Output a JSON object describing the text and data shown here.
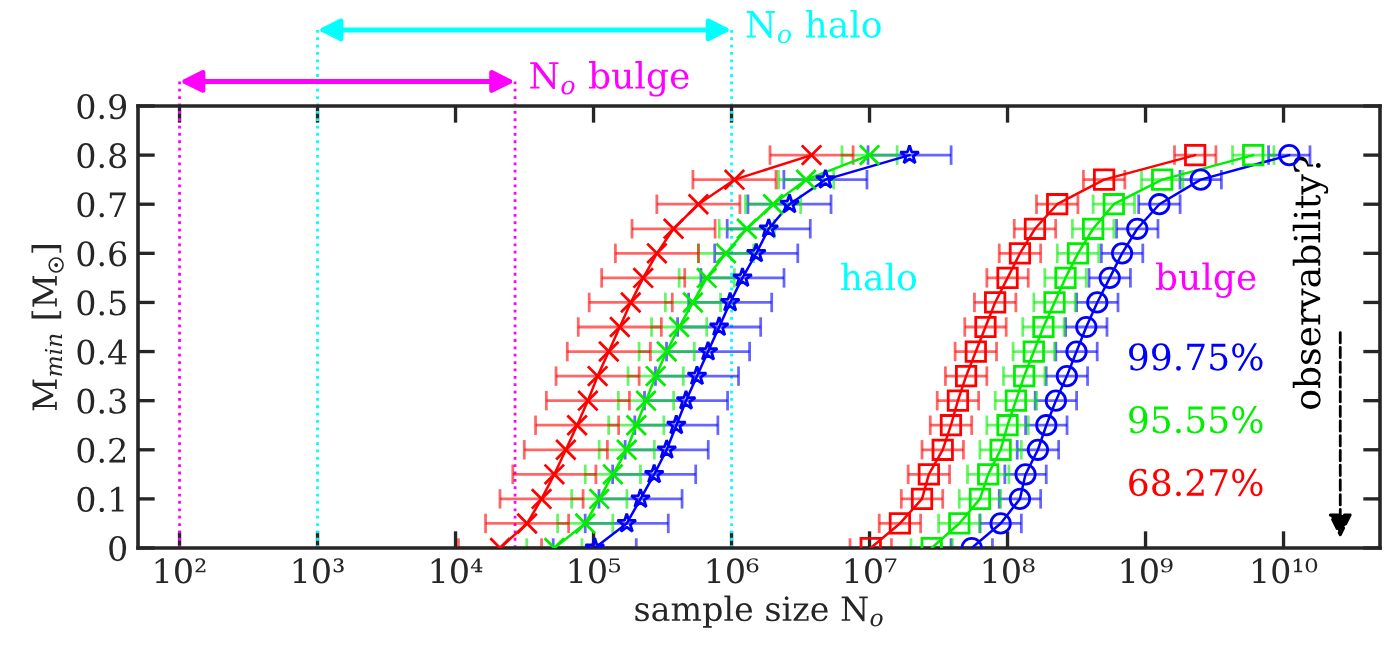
{
  "chart_data": {
    "type": "line",
    "xlabel": "sample size N$_{o}$",
    "ylabel": "M$_{min}$ [M$_{☉}$]",
    "log": "x",
    "xlim": [
      50,
      50000000000
    ],
    "ylim": [
      0,
      0.9
    ],
    "xticks": [
      {
        "value": 100,
        "label": "10²"
      },
      {
        "value": 1000,
        "label": "10³"
      },
      {
        "value": 10000,
        "label": "10⁴"
      },
      {
        "value": 100000,
        "label": "10⁵"
      },
      {
        "value": 1000000,
        "label": "10⁶"
      },
      {
        "value": 10000000,
        "label": "10⁷"
      },
      {
        "value": 100000000,
        "label": "10⁸"
      },
      {
        "value": 1000000000,
        "label": "10⁹"
      },
      {
        "value": 10000000000,
        "label": "10¹⁰"
      }
    ],
    "yticks": [
      0,
      0.1,
      0.2,
      0.3,
      0.4,
      0.5,
      0.6,
      0.7,
      0.8,
      0.9
    ],
    "series": [
      {
        "color": "#0000ff",
        "marker": "star",
        "x": [
          102000,
          174000,
          219000,
          275000,
          339000,
          398000,
          468000,
          562000,
          676000,
          813000,
          977000,
          1200000,
          1510000,
          1860000,
          2630000,
          4790000,
          19500000
        ],
        "values": [
          0,
          0.05,
          0.1,
          0.15,
          0.2,
          0.25,
          0.3,
          0.35,
          0.4,
          0.45,
          0.5,
          0.55,
          0.6,
          0.65,
          0.7,
          0.75,
          0.8
        ],
        "xerrors": [
          [
            51000,
            204000
          ],
          [
            87000,
            348000
          ],
          [
            109500,
            438000
          ],
          [
            137500,
            550000
          ],
          [
            169500,
            678000
          ],
          [
            199000,
            796000
          ],
          [
            234000,
            936000
          ],
          [
            281000,
            1124000
          ],
          [
            338000,
            1352000
          ],
          [
            406500,
            1626000
          ],
          [
            488500,
            1954000
          ],
          [
            600000,
            2400000
          ],
          [
            755000,
            3020000
          ],
          [
            930000,
            3720000
          ],
          [
            1315000,
            5260000
          ],
          [
            2395000,
            9580000
          ],
          [
            9750000,
            39000000
          ]
        ]
      },
      {
        "color": "#00ee00",
        "marker": "cross",
        "x": [
          52000,
          87000,
          110000,
          138000,
          174000,
          204000,
          240000,
          282000,
          339000,
          417000,
          525000,
          661000,
          912000,
          1290000,
          2000000,
          3470000,
          10000000
        ],
        "values": [
          0,
          0.05,
          0.1,
          0.15,
          0.2,
          0.25,
          0.3,
          0.35,
          0.4,
          0.45,
          0.5,
          0.55,
          0.6,
          0.65,
          0.7,
          0.75,
          0.8
        ],
        "xerrors": [
          [
            32800,
            82400
          ],
          [
            54900,
            137900
          ],
          [
            69400,
            174400
          ],
          [
            87100,
            218700
          ],
          [
            109800,
            275800
          ],
          [
            128700,
            323300
          ],
          [
            151400,
            380400
          ],
          [
            177900,
            447000
          ],
          [
            213900,
            537300
          ],
          [
            263100,
            660900
          ],
          [
            331300,
            832100
          ],
          [
            417100,
            1047700
          ],
          [
            575500,
            1445500
          ],
          [
            814000,
            2044700
          ],
          [
            1262000,
            3170000
          ],
          [
            2189600,
            5500000
          ],
          [
            6310000,
            15850000
          ]
        ]
      },
      {
        "color": "#ff0000",
        "marker": "cross",
        "x": [
          21000,
          33000,
          42000,
          52000,
          63000,
          76000,
          91000,
          107000,
          129000,
          155000,
          186000,
          229000,
          288000,
          380000,
          575000,
          1050000,
          3800000
        ],
        "values": [
          0,
          0.05,
          0.1,
          0.15,
          0.2,
          0.25,
          0.3,
          0.35,
          0.4,
          0.45,
          0.5,
          0.55,
          0.6,
          0.65,
          0.7,
          0.75,
          0.8
        ],
        "xerrors": [
          [
            10500,
            42000
          ],
          [
            16500,
            66000
          ],
          [
            21000,
            84000
          ],
          [
            26000,
            104000
          ],
          [
            31500,
            126000
          ],
          [
            38000,
            152000
          ],
          [
            45500,
            182000
          ],
          [
            53500,
            214000
          ],
          [
            64500,
            258000
          ],
          [
            77500,
            310000
          ],
          [
            93000,
            372000
          ],
          [
            114500,
            458000
          ],
          [
            144000,
            576000
          ],
          [
            190000,
            760000
          ],
          [
            287500,
            1150000
          ],
          [
            525000,
            2100000
          ],
          [
            1900000,
            7600000
          ]
        ]
      },
      {
        "name": "99.75%",
        "color": "#0000ff",
        "marker": "circle",
        "x": [
          55000000,
          89100000,
          123000000,
          135000000,
          166000000,
          191000000,
          224000000,
          269000000,
          316000000,
          372000000,
          447000000,
          550000000,
          676000000,
          871000000,
          1260000000,
          2510000000,
          11000000000
        ],
        "values": [
          0,
          0.05,
          0.1,
          0.15,
          0.2,
          0.25,
          0.3,
          0.35,
          0.4,
          0.45,
          0.5,
          0.55,
          0.6,
          0.65,
          0.7,
          0.75,
          0.8
        ],
        "xerrors": [
          [
            38940000,
            77720000
          ],
          [
            63080000,
            125900000
          ],
          [
            87080000,
            173800000
          ],
          [
            95580000,
            190800000
          ],
          [
            117500000,
            234600000
          ],
          [
            135200000,
            269900000
          ],
          [
            158600000,
            316500000
          ],
          [
            190500000,
            380100000
          ],
          [
            223700000,
            446500000
          ],
          [
            263400000,
            525600000
          ],
          [
            316500000,
            631600000
          ],
          [
            389400000,
            777200000
          ],
          [
            478600000,
            955200000
          ],
          [
            616700000,
            1230700000
          ],
          [
            892100000,
            1780400000
          ],
          [
            1777100000,
            3546600000
          ],
          [
            7788000000,
            15543000000
          ]
        ]
      },
      {
        "name": "95.55%",
        "color": "#00ee00",
        "marker": "square",
        "x": [
          28200000,
          44700000,
          63100000,
          72400000,
          89100000,
          100000000,
          115000000,
          132000000,
          155000000,
          182000000,
          219000000,
          263000000,
          324000000,
          417000000,
          589000000,
          1320000000,
          6030000000
        ],
        "values": [
          0,
          0.05,
          0.1,
          0.15,
          0.2,
          0.25,
          0.3,
          0.35,
          0.4,
          0.45,
          0.5,
          0.55,
          0.6,
          0.65,
          0.7,
          0.75,
          0.8
        ],
        "xerrors": [
          [
            19970000,
            39850000
          ],
          [
            31650000,
            63160000
          ],
          [
            44670000,
            89160000
          ],
          [
            51260000,
            102300000
          ],
          [
            63080000,
            125900000
          ],
          [
            70800000,
            141300000
          ],
          [
            81420000,
            162500000
          ],
          [
            93460000,
            186500000
          ],
          [
            109700000,
            219000000
          ],
          [
            128900000,
            257200000
          ],
          [
            155100000,
            309400000
          ],
          [
            186200000,
            371600000
          ],
          [
            229400000,
            457800000
          ],
          [
            295200000,
            589200000
          ],
          [
            417000000,
            832300000
          ],
          [
            934600000,
            1865200000
          ],
          [
            4269000000,
            8520000000
          ]
        ]
      },
      {
        "name": "68.27%",
        "color": "#ff0000",
        "marker": "square",
        "x": [
          10200000,
          16600000,
          24000000,
          26900000,
          33900000,
          38900000,
          43700000,
          50100000,
          58900000,
          69200000,
          81300000,
          100000000,
          123000000,
          158000000,
          229000000,
          501000000,
          2290000000
        ],
        "values": [
          0,
          0.05,
          0.1,
          0.15,
          0.2,
          0.25,
          0.3,
          0.35,
          0.4,
          0.45,
          0.5,
          0.55,
          0.6,
          0.65,
          0.7,
          0.75,
          0.8
        ],
        "xerrors": [
          [
            7220000,
            14410000
          ],
          [
            11750000,
            23460000
          ],
          [
            16990000,
            33910000
          ],
          [
            19050000,
            38010000
          ],
          [
            24000000,
            47900000
          ],
          [
            27540000,
            54970000
          ],
          [
            30940000,
            61750000
          ],
          [
            35470000,
            70790000
          ],
          [
            41700000,
            83230000
          ],
          [
            48990000,
            97780000
          ],
          [
            57560000,
            114880000
          ],
          [
            70800000,
            141300000
          ],
          [
            87080000,
            173800000
          ],
          [
            111860000,
            223250000
          ],
          [
            162130000,
            323580000
          ],
          [
            354710000,
            707910000
          ],
          [
            1621300000,
            3235800000
          ]
        ]
      }
    ],
    "ref_lines": [
      {
        "axis": "x",
        "value": 100,
        "color": "#ff00ff",
        "line_style": "dotted"
      },
      {
        "axis": "x",
        "value": 27000,
        "label": "N$_{o}$ bulge",
        "color": "#ff00ff",
        "line_style": "dotted"
      },
      {
        "axis": "x",
        "value": 1000,
        "color": "#00ffff",
        "line_style": "dotted"
      },
      {
        "axis": "x",
        "value": 1000000,
        "label": "N$_{o}$ halo",
        "color": "#00ffff",
        "line_style": "dotted"
      }
    ],
    "annotations": [
      "halo",
      "bulge",
      "observability?"
    ]
  }
}
